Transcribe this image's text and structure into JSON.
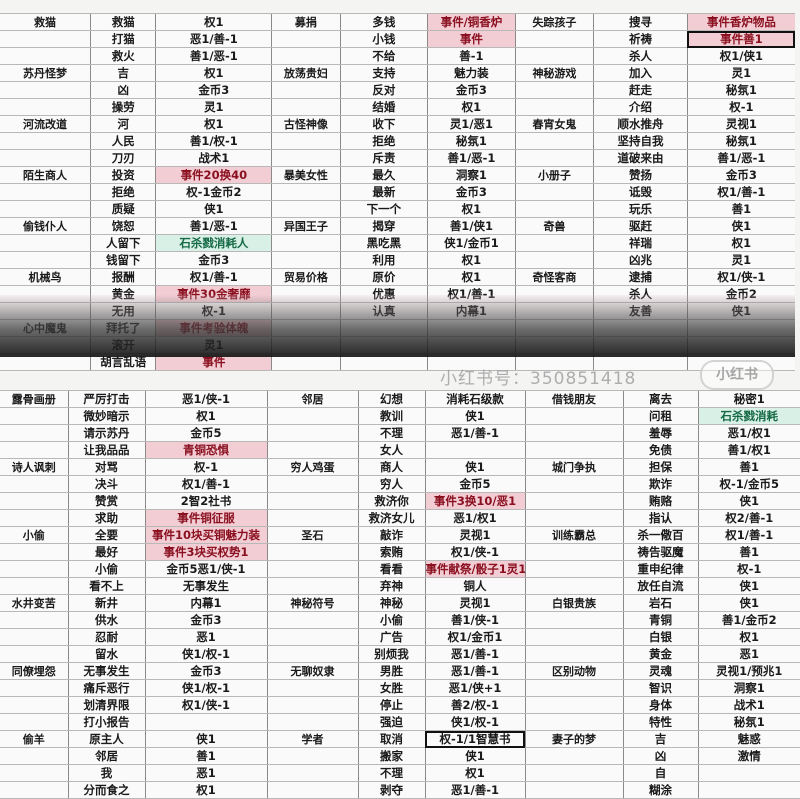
{
  "top": {
    "rows": [
      [
        "救猫",
        "救猫",
        "权1",
        "募捐",
        "多钱",
        {
          "text": "事件/铜香炉",
          "tone": "red"
        },
        "失踪孩子",
        "搜寻",
        {
          "text": "事件香炉物品",
          "tone": "red"
        }
      ],
      [
        "",
        "打猫",
        "恶1/善-1",
        "",
        "小钱",
        {
          "text": "事件",
          "tone": "red"
        },
        "",
        "祈祷",
        {
          "text": "事件善1",
          "tone": "red",
          "boxed": true
        }
      ],
      [
        "",
        "救火",
        "善1/恶-1",
        "",
        "不给",
        "善-1",
        "",
        "杀人",
        "权1/侠1"
      ],
      [
        "苏丹怪梦",
        "吉",
        "权1",
        "放荡贵妇",
        "支持",
        "魅力装",
        "神秘游戏",
        "加入",
        "灵1"
      ],
      [
        "",
        "凶",
        "金币3",
        "",
        "反对",
        "金币3",
        "",
        "赶走",
        "秘氛1"
      ],
      [
        "",
        "操劳",
        "灵1",
        "",
        "结婚",
        "权1",
        "",
        "介绍",
        "权-1"
      ],
      [
        "河流改道",
        "河",
        "权1",
        "古怪神像",
        "收下",
        "灵1/恶1",
        "春宵女鬼",
        "顺水推舟",
        "灵视1"
      ],
      [
        "",
        "人民",
        "善1/权-1",
        "",
        "拒绝",
        "秘氛1",
        "",
        "坚持自我",
        "秘氛1"
      ],
      [
        "",
        "刀刃",
        "战术1",
        "",
        "斥责",
        "善1/恶-1",
        "",
        "道破来由",
        "善1/恶-1"
      ],
      [
        "陌生商人",
        "投资",
        {
          "text": "事件20换40",
          "tone": "red"
        },
        "暴美女性",
        "最久",
        "洞察1",
        "小册子",
        "赞扬",
        "金币3"
      ],
      [
        "",
        "拒绝",
        "权-1金币2",
        "",
        "最新",
        "金币3",
        "",
        "诋毁",
        "权1/善-1"
      ],
      [
        "",
        "质疑",
        "侠1",
        "",
        "下一个",
        "权1",
        "",
        "玩乐",
        "善1"
      ],
      [
        "偷钱仆人",
        "饶恕",
        "善1/恶-1",
        "异国王子",
        "揭穿",
        "善1/侠1",
        "奇兽",
        "驱赶",
        "侠1"
      ],
      [
        "",
        "人留下",
        {
          "text": "石杀戮消耗人",
          "tone": "green"
        },
        "",
        "黑吃黑",
        "侠1/金币1",
        "",
        "祥瑞",
        "权1"
      ],
      [
        "",
        "钱留下",
        "金币3",
        "",
        "利用",
        "权1",
        "",
        "凶兆",
        "灵1"
      ],
      [
        "机械鸟",
        "报酬",
        "权1/善-1",
        "贸易价格",
        "原价",
        "权1",
        "奇怪客商",
        "逮捕",
        "权1/侠-1"
      ],
      [
        "",
        "黄金",
        {
          "text": "事件30金奢靡",
          "tone": "red"
        },
        "",
        "优惠",
        "权1/善-1",
        "",
        "杀人",
        "金币2"
      ],
      [
        "",
        "无用",
        "权-1",
        "",
        "认真",
        "内幕1",
        "",
        "友善",
        "侠1"
      ],
      [
        "心中魔鬼",
        "拜托了",
        {
          "text": "事件考验体魄",
          "tone": "red"
        },
        "",
        "",
        "",
        "",
        "",
        ""
      ],
      [
        "",
        "滚开",
        "灵1",
        "",
        "",
        "",
        "",
        "",
        ""
      ],
      [
        "",
        "胡言乱语",
        {
          "text": "事件",
          "tone": "red"
        },
        "",
        "",
        "",
        "",
        "",
        ""
      ]
    ]
  },
  "bottom": {
    "rows": [
      [
        "露骨画册",
        "严厉打击",
        "恶1/侠-1",
        "邻居",
        "幻想",
        "消耗石级款",
        "借钱朋友",
        "离去",
        "秘密1"
      ],
      [
        "",
        "微妙暗示",
        "权1",
        "",
        "教训",
        "侠1",
        "",
        "问租",
        {
          "text": "石杀戮消耗",
          "tone": "green"
        }
      ],
      [
        "",
        "请示苏丹",
        "金币5",
        "",
        "不理",
        "恶1/善-1",
        "",
        "羞辱",
        "恶1/权1"
      ],
      [
        "",
        "让我品品",
        {
          "text": "青铜恐惧",
          "tone": "red"
        },
        "",
        "女人",
        "",
        "",
        "免债",
        "善1/权1"
      ],
      [
        "诗人讽刺",
        "对骂",
        "权-1",
        "穷人鸡蛋",
        "商人",
        "侠1",
        "城门争执",
        "担保",
        "善1"
      ],
      [
        "",
        "决斗",
        "权1/善-1",
        "",
        "穷人",
        "金币5",
        "",
        "欺诈",
        "权-1/金币5"
      ],
      [
        "",
        "赞赏",
        "2智2社书",
        "",
        "救济你",
        {
          "text": "事件3换10/恶1",
          "tone": "red"
        },
        "",
        "贿赂",
        "侠1"
      ],
      [
        "",
        "求助",
        {
          "text": "事件铜征服",
          "tone": "red"
        },
        "",
        "救济女儿",
        "恶1/权1",
        "",
        "指认",
        "权2/善-1"
      ],
      [
        "小偷",
        "全要",
        {
          "text": "事件10块买铜魅力装",
          "tone": "red"
        },
        "圣石",
        "敲诈",
        "灵视1",
        "训练霸总",
        "杀一儆百",
        "权1/善-1"
      ],
      [
        "",
        "最好",
        {
          "text": "事件3块买权势1",
          "tone": "red"
        },
        "",
        "索贿",
        "权1/侠-1",
        "",
        "祷告驱魔",
        "善1"
      ],
      [
        "",
        "小偷",
        "金币5恶1/侠-1",
        "",
        "看看",
        {
          "text": "事件献祭/骰子1灵1",
          "tone": "red"
        },
        "",
        "重申纪律",
        "权-1"
      ],
      [
        "",
        "看不上",
        "无事发生",
        "",
        "弃神",
        "铜人",
        "",
        "放任自流",
        "侠1"
      ],
      [
        "水井变苦",
        "新井",
        "内幕1",
        "神秘符号",
        "神秘",
        "灵视1",
        "白银贵族",
        "岩石",
        "侠1"
      ],
      [
        "",
        "供水",
        "金币3",
        "",
        "小偷",
        "善1/侠-1",
        "",
        "青铜",
        "善1/金币2"
      ],
      [
        "",
        "忍耐",
        "恶1",
        "",
        "广告",
        "权1/金币1",
        "",
        "白银",
        "权1"
      ],
      [
        "",
        "留水",
        "侠1/权-1",
        "",
        "别烦我",
        "恶1/善-1",
        "",
        "黄金",
        "恶1"
      ],
      [
        "同僚埋怨",
        "无事发生",
        "金币3",
        "无聊奴隶",
        "男胜",
        "恶1/善-1",
        "区别动物",
        "灵魂",
        "灵视1/预兆1"
      ],
      [
        "",
        "痛斥恶行",
        "侠1/权-1",
        "",
        "女胜",
        "恶1/侠+1",
        "",
        "智识",
        "洞察1"
      ],
      [
        "",
        "划清界限",
        "权1/侠-1",
        "",
        "停止",
        "善2/权-1",
        "",
        "身体",
        "战术1"
      ],
      [
        "",
        "打小报告",
        "",
        "",
        "强迫",
        "侠1/权-1",
        "",
        "特性",
        "秘氛1"
      ],
      [
        "偷羊",
        "原主人",
        "侠1",
        "学者",
        "取消",
        {
          "text": "权-1/1智慧书",
          "boxed": true
        },
        "妻子的梦",
        "吉",
        "魅惑"
      ],
      [
        "",
        "邻居",
        "善1",
        "",
        "搬家",
        "侠1",
        "",
        "凶",
        "激情"
      ],
      [
        "",
        "我",
        "恶1",
        "",
        "不理",
        "权1",
        "",
        "自",
        ""
      ],
      [
        "",
        "分而食之",
        "权1",
        "",
        "剥夺",
        "恶1/善-1",
        "",
        "糊涂",
        ""
      ]
    ]
  },
  "watermark": {
    "text": "小红书号：350851418",
    "logo": "小红书"
  },
  "colors": {
    "highlight_red": "#8a1020",
    "highlight_green": "#156a45"
  }
}
